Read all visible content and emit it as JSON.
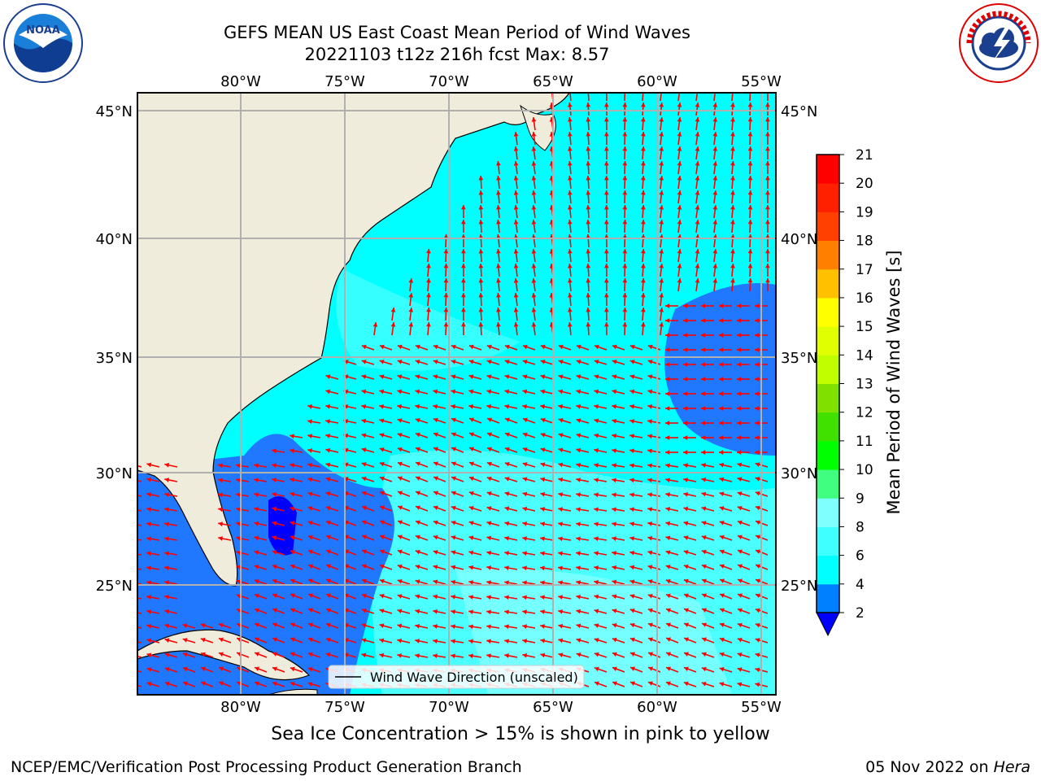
{
  "title": {
    "line1": "GEFS MEAN US East Coast Mean Period of Wind Waves",
    "line2": "20221103 t12z 216h fcst   Max: 8.57"
  },
  "logos": {
    "left": {
      "icon": "noaa-logo-icon",
      "text": "NOAA",
      "ring_text": "NATIONAL OCEANIC AND ATMOSPHERIC ADMINISTRATION · U.S. DEPARTMENT OF COMMERCE"
    },
    "right": {
      "icon": "nws-logo-icon",
      "ring_text": "NATIONAL WEATHER SERVICE"
    }
  },
  "map": {
    "lon_ticks": [
      "80°W",
      "75°W",
      "70°W",
      "65°W",
      "60°W",
      "55°W"
    ],
    "lat_ticks": [
      "45°N",
      "40°N",
      "35°N",
      "30°N",
      "25°N"
    ],
    "legend_label": "Wind Wave Direction (unscaled)",
    "colors": {
      "land": "#efecdc",
      "low_band": "#1f78ff",
      "mid_band": "#00ffff",
      "high_band": "#4cffff",
      "arrow": "#ff0000"
    }
  },
  "colorbar": {
    "label": "Mean Period of Wind Waves [s]",
    "ticks": [
      "2",
      "4",
      "6",
      "8",
      "9",
      "10",
      "11",
      "12",
      "13",
      "14",
      "15",
      "16",
      "17",
      "18",
      "19",
      "20",
      "21"
    ],
    "colors": [
      "#0000ff",
      "#0080ff",
      "#00ffff",
      "#40ffff",
      "#80ffff",
      "#40ff80",
      "#00ff00",
      "#40e000",
      "#80e000",
      "#c0ff00",
      "#e0ff00",
      "#ffff00",
      "#ffc000",
      "#ff8000",
      "#ff4000",
      "#ff2000",
      "#ff0000"
    ]
  },
  "note": "Sea Ice Concentration > 15% is shown in pink to yellow",
  "footer": {
    "left": "NCEP/EMC/Verification Post Processing Product Generation Branch",
    "right_date": "05 Nov 2022 on ",
    "right_machine": "Hera"
  }
}
